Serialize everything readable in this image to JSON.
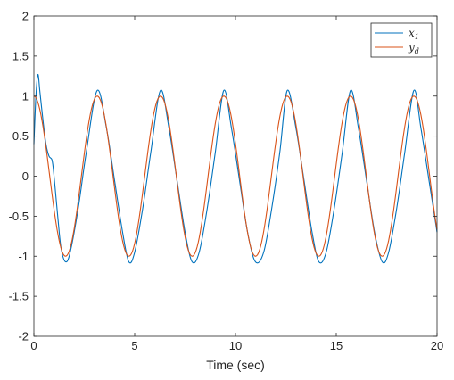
{
  "chart_data": {
    "type": "line",
    "xlabel": "Time (sec)",
    "ylabel": "",
    "title": "",
    "xlim": [
      0,
      20
    ],
    "ylim": [
      -2,
      2
    ],
    "xticks": [
      0,
      5,
      10,
      15,
      20
    ],
    "yticks": [
      -2,
      -1.5,
      -1,
      -0.5,
      0,
      0.5,
      1,
      1.5,
      2
    ],
    "xtick_labels": [
      "0",
      "5",
      "10",
      "15",
      "20"
    ],
    "ytick_labels": [
      "-2",
      "-1.5",
      "-1",
      "-0.5",
      "0",
      "0.5",
      "1",
      "1.5",
      "2"
    ],
    "grid": false,
    "legend_position": "top-right",
    "series": [
      {
        "name": "x",
        "name_subscript": "1",
        "color": "#0072BD",
        "x": [
          0,
          0.1,
          0.2,
          0.3,
          0.45,
          0.6,
          0.75,
          0.9,
          1.0,
          1.2,
          1.35,
          1.57,
          1.8,
          2.2,
          2.6,
          3.14,
          3.6,
          4.0,
          4.4,
          4.71,
          5.0,
          5.4,
          5.8,
          6.28,
          6.7,
          7.1,
          7.5,
          7.85,
          8.2,
          8.6,
          9.0,
          9.42,
          9.8,
          10.2,
          10.6,
          10.99,
          11.4,
          11.8,
          12.2,
          12.57,
          13.0,
          13.4,
          13.8,
          14.14,
          14.5,
          14.9,
          15.3,
          15.71,
          16.1,
          16.5,
          16.9,
          17.28,
          17.6,
          18.0,
          18.4,
          18.85,
          19.2,
          19.6,
          20.0
        ],
        "y": [
          0.4,
          1.0,
          1.27,
          1.05,
          0.7,
          0.4,
          0.25,
          0.2,
          0.0,
          -0.55,
          -0.9,
          -1.07,
          -0.95,
          -0.4,
          0.3,
          1.07,
          0.6,
          -0.05,
          -0.7,
          -1.07,
          -0.95,
          -0.4,
          0.3,
          1.07,
          0.6,
          -0.05,
          -0.7,
          -1.07,
          -0.95,
          -0.4,
          0.3,
          1.07,
          0.6,
          -0.05,
          -0.7,
          -1.07,
          -0.95,
          -0.4,
          0.3,
          1.07,
          0.6,
          -0.05,
          -0.7,
          -1.07,
          -0.95,
          -0.4,
          0.3,
          1.07,
          0.6,
          -0.05,
          -0.7,
          -1.07,
          -0.95,
          -0.4,
          0.3,
          1.07,
          0.6,
          -0.05,
          -0.7
        ]
      },
      {
        "name": "y",
        "name_subscript": "d",
        "color": "#D95319",
        "function": "sin(2*t + pi/2)",
        "samples": 400
      }
    ]
  }
}
